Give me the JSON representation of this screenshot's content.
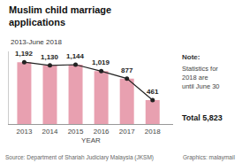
{
  "chart_data": {
    "type": "bar",
    "title": "Muslim child marriage\napplications",
    "subtitle": "2013-June 2018",
    "xlabel": "YEAR",
    "x": [
      2013,
      2014,
      2015,
      2016,
      2017,
      2018
    ],
    "series": [
      {
        "type": "bar",
        "color": "#e8a0b0",
        "values": [
          1192,
          1130,
          1144,
          1019,
          877,
          461
        ],
        "value_labels": [
          "1,192",
          "1,130",
          "1,144",
          "1,019",
          "877",
          "461"
        ]
      },
      {
        "type": "line",
        "color": "#222222",
        "marker": "circle",
        "line_style": "solid",
        "values": [
          1192,
          1130,
          1144,
          1019,
          877,
          461
        ]
      }
    ],
    "data_labels": true,
    "xlim": [
      2012.4,
      2018.8
    ],
    "xticks": [
      2013,
      2014,
      2015,
      2016,
      2017,
      2018
    ],
    "ylim": [
      0,
      1400
    ],
    "tick_labels": "x",
    "grid": false,
    "annotations": [
      "Note:",
      "Statistics for\n2018 are\nuntil June 30",
      "Total 5,823",
      "Source: Department of Shariah Judiciary Malaysia (JKSM)",
      "Graphics: malaymail"
    ]
  }
}
